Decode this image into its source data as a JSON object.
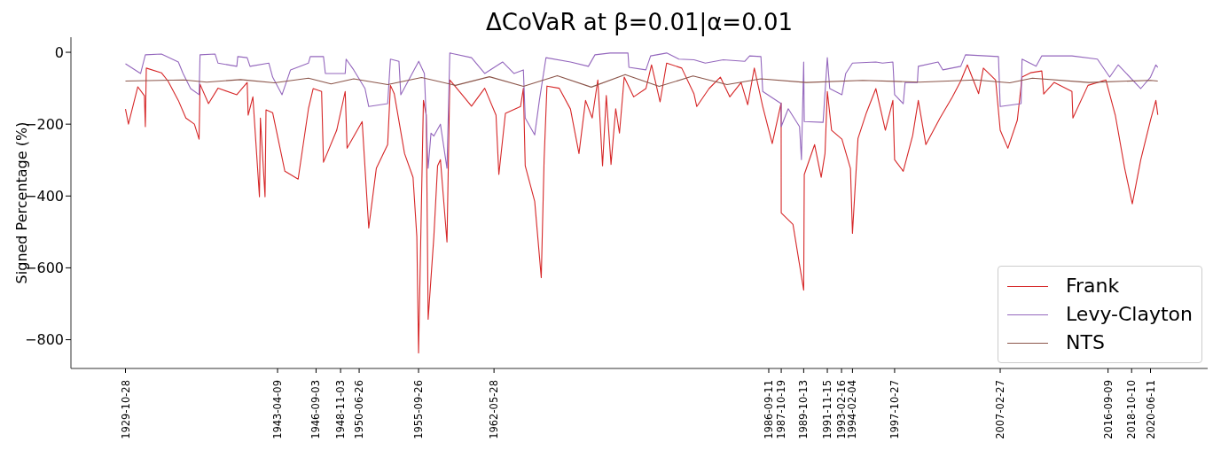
{
  "chart_data": {
    "type": "line",
    "title": "ΔCoVaR at β=0.01|α=0.01",
    "ylabel": "Signed Percentage (%)",
    "xlim": [
      "1925-01",
      "2025-07"
    ],
    "ylim": [
      -880,
      42
    ],
    "xticks": [
      "1929-10-28",
      "1943-04-09",
      "1946-09-03",
      "1948-11-03",
      "1950-06-26",
      "1955-09-26",
      "1962-05-28",
      "1986-09-11",
      "1987-10-19",
      "1989-10-13",
      "1991-11-15",
      "1993-02-16",
      "1994-02-04",
      "1997-10-27",
      "2007-02-27",
      "2016-09-09",
      "2018-10-10",
      "2020-06-11"
    ],
    "yticks": [
      0,
      -200,
      -400,
      -600,
      -800
    ],
    "legend": "bottom right",
    "series": [
      {
        "name": "Frank",
        "color": "#d62728",
        "x": [
          "1929-10-28",
          "1930-02",
          "1930-12",
          "1931-07",
          "1931-08",
          "1931-09",
          "1933-01",
          "1933-08",
          "1934-07",
          "1935-03",
          "1935-12",
          "1936-05",
          "1936-06",
          "1937-03",
          "1938-01",
          "1939-09",
          "1940-08",
          "1940-09",
          "1941-02",
          "1941-09",
          "1941-10",
          "1942-03",
          "1942-04",
          "1942-11",
          "1943-12",
          "1945-02",
          "1946-01",
          "1946-06",
          "1947-03",
          "1947-05",
          "1948-07",
          "1949-04",
          "1949-06",
          "1950-10",
          "1951-05",
          "1952-01",
          "1953-01",
          "1953-04",
          "1953-08",
          "1954-07",
          "1955-04",
          "1955-08",
          "1955-09-26",
          "1956-03",
          "1956-06",
          "1956-08",
          "1957-02",
          "1957-06",
          "1957-09",
          "1958-04",
          "1958-07",
          "1959-08",
          "1960-06",
          "1961-08",
          "1962-08",
          "1962-11",
          "1963-06",
          "1964-10",
          "1965-01",
          "1965-03",
          "1966-01",
          "1966-08",
          "1966-11",
          "1967-02",
          "1968-03",
          "1969-03",
          "1969-12",
          "1970-07",
          "1971-02",
          "1971-08",
          "1972-01",
          "1972-05",
          "1972-10",
          "1973-03",
          "1973-07",
          "1973-12",
          "1974-10",
          "1975-11",
          "1976-05",
          "1977-02",
          "1977-09",
          "1979-01",
          "1980-02",
          "1980-05",
          "1981-06",
          "1982-06",
          "1983-04",
          "1984-04",
          "1984-11",
          "1985-06",
          "1986-03",
          "1987-01",
          "1987-10-16",
          "1987-10-19",
          "1988-11",
          "1989-10-13",
          "1989-11",
          "1990-10",
          "1991-05",
          "1991-09",
          "1991-11-15",
          "1992-04",
          "1993-03",
          "1993-12",
          "1994-02-04",
          "1994-08",
          "1995-05",
          "1996-03",
          "1997-01",
          "1997-09",
          "1997-10-27",
          "1998-08",
          "1999-06",
          "1999-12",
          "2000-08",
          "2001-11",
          "2002-12",
          "2003-09",
          "2004-04",
          "2005-04",
          "2005-09",
          "2006-10",
          "2007-02-27",
          "2007-11",
          "2008-09",
          "2009-02",
          "2009-11",
          "2010-11",
          "2011-01",
          "2011-12",
          "2013-07",
          "2013-08",
          "2014-12",
          "2016-07",
          "2017-05",
          "2018-03",
          "2018-11",
          "2019-08",
          "2020-06-11",
          "2020-12",
          "2021-02"
        ],
        "values": [
          -158,
          -200,
          -96,
          -121,
          -207,
          -44,
          -57,
          -80,
          -134,
          -183,
          -200,
          -242,
          -89,
          -143,
          -100,
          -118,
          -84,
          -175,
          -124,
          -402,
          -183,
          -402,
          -160,
          -168,
          -331,
          -353,
          -157,
          -101,
          -109,
          -306,
          -217,
          -109,
          -267,
          -193,
          -489,
          -323,
          -257,
          -92,
          -115,
          -282,
          -348,
          -513,
          -837,
          -134,
          -174,
          -743,
          -513,
          -316,
          -299,
          -528,
          -77,
          -118,
          -150,
          -100,
          -175,
          -340,
          -170,
          -151,
          -100,
          -316,
          -415,
          -627,
          -299,
          -94,
          -100,
          -158,
          -282,
          -134,
          -183,
          -77,
          -316,
          -120,
          -312,
          -157,
          -225,
          -69,
          -124,
          -101,
          -35,
          -138,
          -30,
          -44,
          -116,
          -151,
          -101,
          -69,
          -124,
          -84,
          -146,
          -44,
          -151,
          -254,
          -141,
          -447,
          -479,
          -662,
          -340,
          -257,
          -348,
          -282,
          -109,
          -217,
          -242,
          -323,
          -504,
          -240,
          -168,
          -101,
          -217,
          -134,
          -299,
          -331,
          -232,
          -134,
          -257,
          -183,
          -125,
          -80,
          -35,
          -115,
          -44,
          -77,
          -217,
          -267,
          -189,
          -69,
          -57,
          -52,
          -116,
          -84,
          -109,
          -183,
          -92,
          -77,
          -175,
          -323,
          -422,
          -299,
          -189,
          -134,
          -174
        ]
      },
      {
        "name": "Levy-Clayton",
        "color": "#9467bd",
        "x": [
          "1929-10-28",
          "1931-03",
          "1931-08",
          "1933-01",
          "1934-07",
          "1934-12",
          "1935-08",
          "1936-05",
          "1936-06",
          "1937-10",
          "1938-01",
          "1939-09",
          "1939-10",
          "1940-08",
          "1940-11",
          "1942-07",
          "1942-11",
          "1943-09",
          "1944-06",
          "1946-01",
          "1946-03",
          "1947-05",
          "1947-07",
          "1949-04",
          "1949-05",
          "1950-01",
          "1951-01",
          "1951-05",
          "1953-01",
          "1953-04",
          "1954-01",
          "1954-03",
          "1955-10",
          "1956-04",
          "1956-08",
          "1956-11",
          "1957-02",
          "1957-09",
          "1958-04",
          "1958-07",
          "1960-06",
          "1961-08",
          "1963-03",
          "1964-03",
          "1965-01",
          "1965-03",
          "1966-01",
          "1966-06",
          "1967-01",
          "1969-03",
          "1970-10",
          "1971-05",
          "1972-09",
          "1974-04",
          "1974-05",
          "1975-11",
          "1976-04",
          "1977-09",
          "1978-10",
          "1980-02",
          "1981-02",
          "1982-09",
          "1984-08",
          "1985-01",
          "1986-01",
          "1986-03",
          "1987-10-16",
          "1987-10-19",
          "1988-06",
          "1989-06",
          "1989-08",
          "1989-10-13",
          "1989-11",
          "1991-07",
          "1991-11-15",
          "1992-02",
          "1993-03",
          "1993-07",
          "1994-02-04",
          "1996-03",
          "1996-10",
          "1997-09",
          "1997-10-27",
          "1998-08",
          "1998-10",
          "1999-11",
          "1999-12",
          "2001-09",
          "2002-02",
          "2003-09",
          "2004-02",
          "2007-01",
          "2007-02-27",
          "2009-01",
          "2009-02",
          "2010-05",
          "2010-11",
          "2013-07",
          "2015-10",
          "2016-11",
          "2017-08",
          "2019-08",
          "2020-06-11",
          "2020-12",
          "2021-02"
        ],
        "values": [
          -32,
          -59,
          -7,
          -5,
          -27,
          -59,
          -101,
          -118,
          -7,
          -5,
          -30,
          -39,
          -12,
          -15,
          -39,
          -30,
          -69,
          -118,
          -49,
          -30,
          -12,
          -12,
          -59,
          -59,
          -19,
          -49,
          -101,
          -151,
          -143,
          -19,
          -25,
          -118,
          -25,
          -59,
          -323,
          -225,
          -233,
          -200,
          -323,
          -2,
          -15,
          -59,
          -27,
          -59,
          -49,
          -183,
          -230,
          -134,
          -15,
          -27,
          -39,
          -7,
          -2,
          -2,
          -42,
          -49,
          -10,
          -2,
          -19,
          -21,
          -30,
          -21,
          -25,
          -10,
          -12,
          -109,
          -143,
          -207,
          -157,
          -207,
          -299,
          -27,
          -193,
          -195,
          -15,
          -101,
          -118,
          -59,
          -30,
          -27,
          -30,
          -27,
          -118,
          -143,
          -84,
          -84,
          -39,
          -27,
          -49,
          -39,
          -7,
          -12,
          -151,
          -143,
          -19,
          -39,
          -10,
          -10,
          -19,
          -69,
          -35,
          -101,
          -69,
          -35,
          -42
        ]
      },
      {
        "name": "NTS",
        "color": "#8c564b",
        "x": [
          "1929-10-28",
          "1935-01",
          "1937-01",
          "1940-01",
          "1943-01",
          "1946-01",
          "1948-01",
          "1950-01",
          "1953-01",
          "1956-01",
          "1959-01",
          "1962-01",
          "1965-01",
          "1968-01",
          "1971-01",
          "1974-01",
          "1977-01",
          "1980-01",
          "1983-01",
          "1986-01",
          "1990-01",
          "1995-01",
          "2000-01",
          "2005-01",
          "2008-01",
          "2010-01",
          "2015-01",
          "2020-06-11",
          "2021-02"
        ],
        "values": [
          -80,
          -77,
          -83,
          -76,
          -85,
          -72,
          -88,
          -74,
          -90,
          -70,
          -92,
          -68,
          -95,
          -65,
          -97,
          -62,
          -95,
          -66,
          -90,
          -74,
          -84,
          -78,
          -83,
          -77,
          -85,
          -72,
          -84,
          -78,
          -80
        ]
      }
    ]
  }
}
